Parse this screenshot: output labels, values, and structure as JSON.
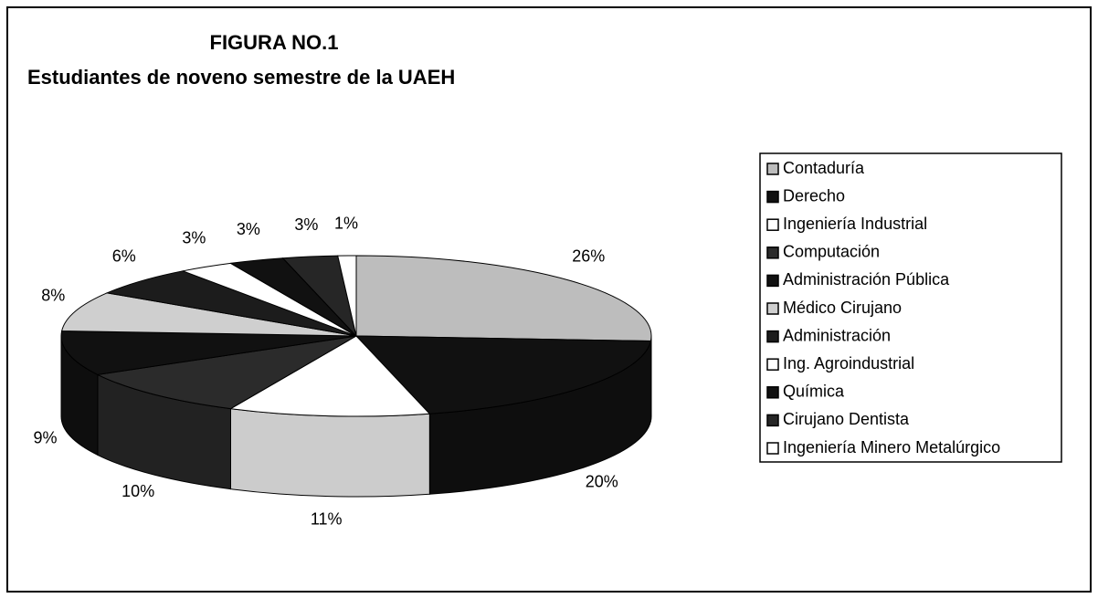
{
  "chart_data": {
    "type": "pie",
    "title": "FIGURA NO.1",
    "subtitle": "Estudiantes de noveno semestre de la UAEH",
    "categories": [
      "Contaduría",
      "Derecho",
      "Ingeniería Industrial",
      "Computación",
      "Administración Pública",
      "Médico Cirujano",
      "Administración",
      "Ing. Agroindustrial",
      "Química",
      "Cirujano Dentista",
      "Ingeniería Minero Metalúrgico"
    ],
    "values": [
      26,
      20,
      11,
      10,
      9,
      8,
      6,
      3,
      3,
      3,
      1
    ],
    "value_labels": [
      "26%",
      "20%",
      "11%",
      "10%",
      "9%",
      "8%",
      "6%",
      "3%",
      "3%",
      "3%",
      "1%"
    ],
    "colors": [
      "#bdbdbd",
      "#111111",
      "#ffffff",
      "#2b2b2b",
      "#111111",
      "#cfcfcf",
      "#1c1c1c",
      "#ffffff",
      "#111111",
      "#262626",
      "#ffffff"
    ],
    "legend": "right"
  }
}
